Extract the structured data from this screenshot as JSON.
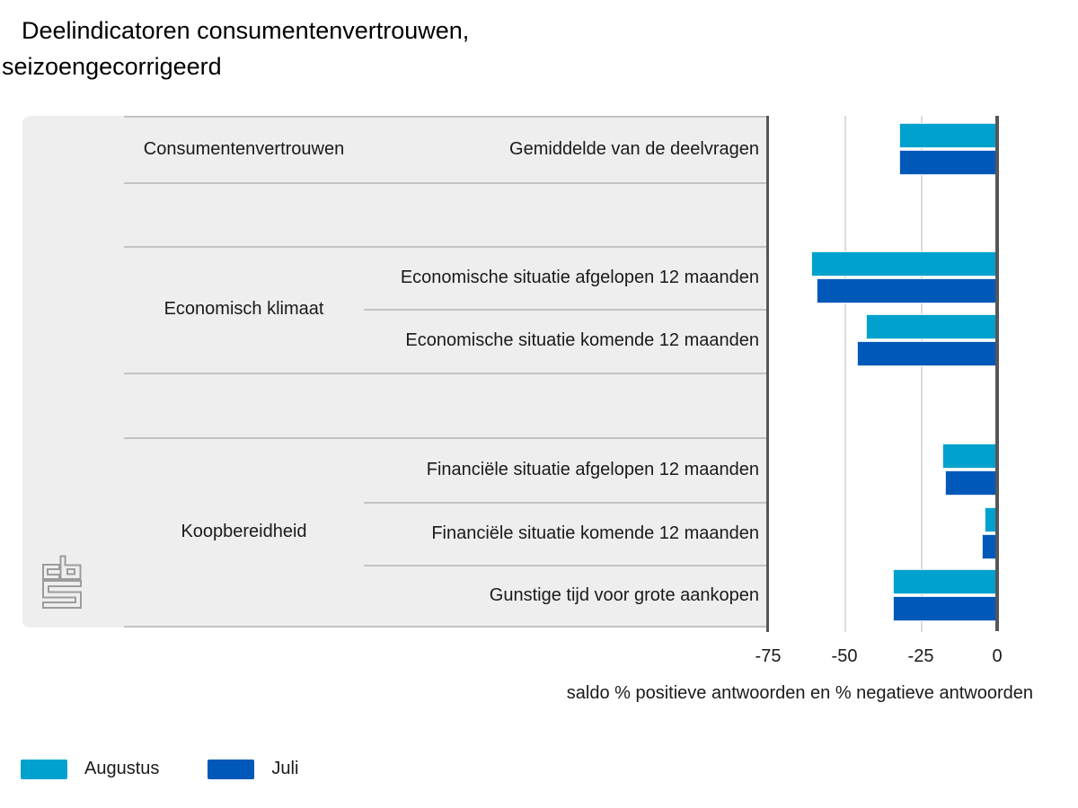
{
  "title_lines": [
    "Deelindicatoren consumentenvertrouwen,",
    "seizoengecorrigeerd"
  ],
  "logo": "cbs",
  "chart_data": {
    "type": "bar",
    "orientation": "horizontal",
    "title": "Deelindicatoren consumentenvertrouwen, seizoengecorrigeerd",
    "xlabel": "saldo % positieve antwoorden en % negatieve antwoorden",
    "xlim": [
      -75,
      0
    ],
    "xticks": [
      "-75",
      "-50",
      "-25",
      "0"
    ],
    "xtick_values": [
      -75,
      -50,
      -25,
      0
    ],
    "grid": true,
    "legend_position": "bottom-left",
    "series_names": [
      "Augustus",
      "Juli"
    ],
    "colors": {
      "Augustus": "#00a1cd",
      "Juli": "#0058b8",
      "axis": "#55565a",
      "panel": "#eeeeee",
      "separator": "#c3c3c3",
      "logo_gray": "#9c9c9c"
    },
    "groups": [
      {
        "name": "Consumentenvertrouwen",
        "items": [
          {
            "label": "Gemiddelde van de deelvragen",
            "values": {
              "Augustus": -32,
              "Juli": -32
            }
          }
        ]
      },
      {
        "name": "Economisch klimaat",
        "items": [
          {
            "label": "Economische situatie afgelopen 12 maanden",
            "values": {
              "Augustus": -61,
              "Juli": -59
            }
          },
          {
            "label": "Economische situatie komende 12 maanden",
            "values": {
              "Augustus": -43,
              "Juli": -46
            }
          }
        ]
      },
      {
        "name": "Koopbereidheid",
        "items": [
          {
            "label": "Financiële situatie afgelopen 12 maanden",
            "values": {
              "Augustus": -18,
              "Juli": -17
            }
          },
          {
            "label": "Financiële situatie komende 12 maanden",
            "values": {
              "Augustus": -4,
              "Juli": -5
            }
          },
          {
            "label": "Gunstige tijd voor grote aankopen",
            "values": {
              "Augustus": -34,
              "Juli": -34
            }
          }
        ]
      }
    ]
  }
}
